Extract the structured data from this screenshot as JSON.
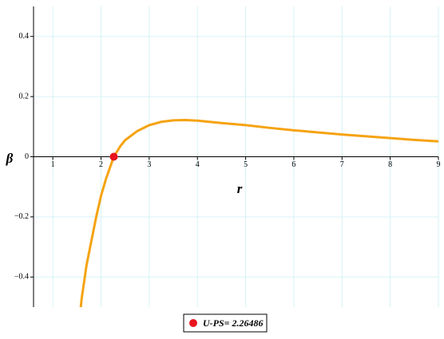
{
  "chart_data": {
    "type": "line",
    "x_label": "r",
    "y_label": "β",
    "x": [
      1.58,
      1.6,
      1.7,
      1.8,
      1.9,
      2.0,
      2.1,
      2.26486,
      2.4,
      2.5,
      2.75,
      3.0,
      3.25,
      3.5,
      3.75,
      4.0,
      4.5,
      5.0,
      5.5,
      6.0,
      6.5,
      7.0,
      7.5,
      8.0,
      8.5,
      9.0
    ],
    "series": [
      {
        "name": "β",
        "color": "#f5a311",
        "values": [
          -0.5,
          -0.47,
          -0.36,
          -0.28,
          -0.2,
          -0.13,
          -0.075,
          0,
          0.035,
          0.055,
          0.085,
          0.105,
          0.116,
          0.121,
          0.122,
          0.12,
          0.112,
          0.105,
          0.096,
          0.088,
          0.081,
          0.074,
          0.068,
          0.062,
          0.056,
          0.051
        ]
      }
    ],
    "markers": [
      {
        "name": "U-PS= 2.26486",
        "x": 2.26486,
        "y": 0,
        "color": "#e8141e"
      }
    ],
    "xlim": [
      0.6,
      9
    ],
    "ylim": [
      -0.5,
      0.5
    ],
    "xticks": [
      1,
      2,
      3,
      4,
      5,
      6,
      7,
      8,
      9
    ],
    "yticks": [
      {
        "value": -0.4,
        "label": "−0.4"
      },
      {
        "value": -0.2,
        "label": "−0.2"
      },
      0,
      0.2,
      0.4
    ],
    "grid": true
  }
}
